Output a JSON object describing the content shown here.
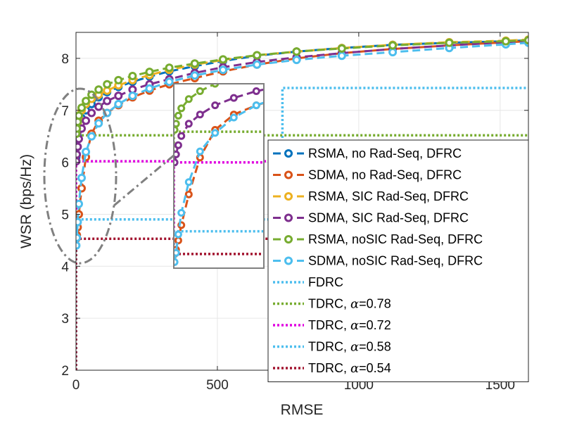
{
  "chart_data": {
    "type": "line",
    "title": "",
    "xlabel": "RMSE",
    "ylabel": "WSR (bps/Hz)",
    "xlim": [
      0,
      1600
    ],
    "ylim": [
      2,
      8.5
    ],
    "xticks": [
      0,
      500,
      1000,
      1500
    ],
    "yticks": [
      2,
      3,
      4,
      5,
      6,
      7,
      8
    ],
    "grid": true,
    "legend_position": "right",
    "zoom_inset": {
      "x_range": [
        0,
        120
      ],
      "y_range": [
        4.3,
        7.3
      ]
    },
    "series": [
      {
        "name": "RSMA, no Rad-Seq, DFRC",
        "legend_prefix": "RSMA, no Rad-Seq, DFRC",
        "legend_suffix": "",
        "style": "dash-marker",
        "color": "#0072BD",
        "points": [
          [
            1,
            6.1
          ],
          [
            3,
            6.3
          ],
          [
            6,
            6.5
          ],
          [
            10,
            6.65
          ],
          [
            20,
            6.85
          ],
          [
            35,
            7.0
          ],
          [
            55,
            7.12
          ],
          [
            80,
            7.25
          ],
          [
            110,
            7.35
          ],
          [
            150,
            7.45
          ],
          [
            200,
            7.55
          ],
          [
            260,
            7.65
          ],
          [
            330,
            7.75
          ],
          [
            420,
            7.85
          ],
          [
            520,
            7.95
          ],
          [
            640,
            8.05
          ],
          [
            780,
            8.13
          ],
          [
            940,
            8.2
          ],
          [
            1120,
            8.26
          ],
          [
            1320,
            8.3
          ],
          [
            1520,
            8.33
          ],
          [
            1600,
            8.35
          ]
        ]
      },
      {
        "name": "SDMA, no Rad-Seq, DFRC",
        "legend_prefix": "SDMA, no Rad-Seq, DFRC",
        "legend_suffix": "",
        "style": "dash-marker",
        "color": "#D95319",
        "points": [
          [
            1,
            4.53
          ],
          [
            3,
            4.6
          ],
          [
            6,
            4.75
          ],
          [
            10,
            5.0
          ],
          [
            20,
            5.5
          ],
          [
            35,
            6.1
          ],
          [
            55,
            6.55
          ],
          [
            80,
            6.8
          ],
          [
            110,
            6.95
          ],
          [
            150,
            7.1
          ],
          [
            200,
            7.25
          ],
          [
            260,
            7.38
          ],
          [
            330,
            7.5
          ],
          [
            420,
            7.62
          ],
          [
            520,
            7.75
          ],
          [
            640,
            7.88
          ],
          [
            780,
            8.0
          ],
          [
            940,
            8.1
          ],
          [
            1120,
            8.18
          ],
          [
            1320,
            8.25
          ],
          [
            1520,
            8.31
          ],
          [
            1600,
            8.33
          ]
        ]
      },
      {
        "name": "RSMA, SIC Rad-Seq, DFRC",
        "legend_prefix": "RSMA, SIC Rad-Seq, DFRC",
        "legend_suffix": "",
        "style": "dash-marker",
        "color": "#EDB120",
        "points": [
          [
            1,
            6.52
          ],
          [
            3,
            6.62
          ],
          [
            6,
            6.75
          ],
          [
            10,
            6.85
          ],
          [
            20,
            7.0
          ],
          [
            35,
            7.12
          ],
          [
            55,
            7.22
          ],
          [
            80,
            7.3
          ],
          [
            110,
            7.38
          ],
          [
            150,
            7.48
          ],
          [
            200,
            7.58
          ],
          [
            260,
            7.68
          ],
          [
            330,
            7.78
          ],
          [
            420,
            7.88
          ],
          [
            520,
            7.97
          ],
          [
            640,
            8.06
          ],
          [
            780,
            8.13
          ],
          [
            940,
            8.2
          ],
          [
            1120,
            8.26
          ],
          [
            1320,
            8.31
          ],
          [
            1520,
            8.34
          ],
          [
            1600,
            8.36
          ]
        ]
      },
      {
        "name": "SDMA, SIC Rad-Seq, DFRC",
        "legend_prefix": "SDMA, SIC Rad-Seq, DFRC",
        "legend_suffix": "",
        "style": "dash-marker",
        "color": "#7E2F8E",
        "points": [
          [
            1,
            6.02
          ],
          [
            3,
            6.15
          ],
          [
            6,
            6.3
          ],
          [
            10,
            6.45
          ],
          [
            20,
            6.65
          ],
          [
            35,
            6.8
          ],
          [
            55,
            6.95
          ],
          [
            80,
            7.07
          ],
          [
            110,
            7.18
          ],
          [
            150,
            7.28
          ],
          [
            200,
            7.4
          ],
          [
            260,
            7.5
          ],
          [
            330,
            7.6
          ],
          [
            420,
            7.72
          ],
          [
            520,
            7.83
          ],
          [
            640,
            7.93
          ],
          [
            780,
            8.02
          ],
          [
            940,
            8.1
          ],
          [
            1120,
            8.18
          ],
          [
            1320,
            8.25
          ],
          [
            1520,
            8.31
          ],
          [
            1600,
            8.34
          ]
        ]
      },
      {
        "name": "RSMA, noSIC Rad-Seq, DFRC",
        "legend_prefix": "RSMA, noSIC Rad-Seq, DFRC",
        "legend_suffix": "",
        "style": "dash-marker",
        "color": "#77AC30",
        "points": [
          [
            1,
            6.55
          ],
          [
            3,
            6.65
          ],
          [
            6,
            6.78
          ],
          [
            10,
            6.9
          ],
          [
            20,
            7.05
          ],
          [
            35,
            7.18
          ],
          [
            55,
            7.3
          ],
          [
            80,
            7.4
          ],
          [
            110,
            7.5
          ],
          [
            150,
            7.58
          ],
          [
            200,
            7.66
          ],
          [
            260,
            7.74
          ],
          [
            330,
            7.82
          ],
          [
            420,
            7.9
          ],
          [
            520,
            7.98
          ],
          [
            640,
            8.06
          ],
          [
            780,
            8.13
          ],
          [
            940,
            8.19
          ],
          [
            1120,
            8.25
          ],
          [
            1320,
            8.3
          ],
          [
            1520,
            8.33
          ],
          [
            1600,
            8.35
          ]
        ]
      },
      {
        "name": "SDMA, noSIC Rad-Seq, DFRC",
        "legend_prefix": "SDMA, noSIC Rad-Seq, DFRC",
        "legend_suffix": "",
        "style": "dash-marker",
        "color": "#4DBEEE",
        "points": [
          [
            1,
            4.4
          ],
          [
            3,
            4.55
          ],
          [
            6,
            4.85
          ],
          [
            10,
            5.2
          ],
          [
            20,
            5.7
          ],
          [
            35,
            6.2
          ],
          [
            55,
            6.5
          ],
          [
            80,
            6.75
          ],
          [
            110,
            6.95
          ],
          [
            150,
            7.12
          ],
          [
            200,
            7.28
          ],
          [
            260,
            7.42
          ],
          [
            330,
            7.55
          ],
          [
            420,
            7.67
          ],
          [
            520,
            7.78
          ],
          [
            640,
            7.88
          ],
          [
            780,
            7.97
          ],
          [
            940,
            8.05
          ],
          [
            1120,
            8.12
          ],
          [
            1320,
            8.2
          ],
          [
            1520,
            8.27
          ],
          [
            1600,
            8.3
          ]
        ]
      },
      {
        "name": "FDRC",
        "legend_prefix": "FDRC",
        "legend_suffix": "",
        "style": "dotted",
        "color": "#4DBEEE",
        "points": [
          [
            730,
            2.0
          ],
          [
            730,
            7.43
          ],
          [
            1600,
            7.43
          ]
        ]
      },
      {
        "name": "TDRC, α=0.78",
        "legend_prefix": "TDRC, ",
        "legend_suffix": "=0.78",
        "style": "dotted",
        "color": "#77AC30",
        "points": [
          [
            0,
            2.0
          ],
          [
            0,
            6.52
          ],
          [
            1600,
            6.52
          ]
        ]
      },
      {
        "name": "TDRC, α=0.72",
        "legend_prefix": "TDRC, ",
        "legend_suffix": "=0.72",
        "style": "dotted",
        "color": "#E000E0",
        "points": [
          [
            0,
            2.0
          ],
          [
            0,
            6.02
          ],
          [
            1600,
            6.02
          ]
        ]
      },
      {
        "name": "TDRC, α=0.58",
        "legend_prefix": "TDRC, ",
        "legend_suffix": "=0.58",
        "style": "dotted",
        "color": "#4DBEEE",
        "points": [
          [
            0,
            2.0
          ],
          [
            0,
            4.9
          ],
          [
            1600,
            4.9
          ]
        ]
      },
      {
        "name": "TDRC, α=0.54",
        "legend_prefix": "TDRC, ",
        "legend_suffix": "=0.54",
        "style": "dotted",
        "color": "#A2142F",
        "points": [
          [
            0,
            2.0
          ],
          [
            0,
            4.53
          ],
          [
            1600,
            4.53
          ]
        ]
      }
    ]
  },
  "legend_symbol": "α"
}
